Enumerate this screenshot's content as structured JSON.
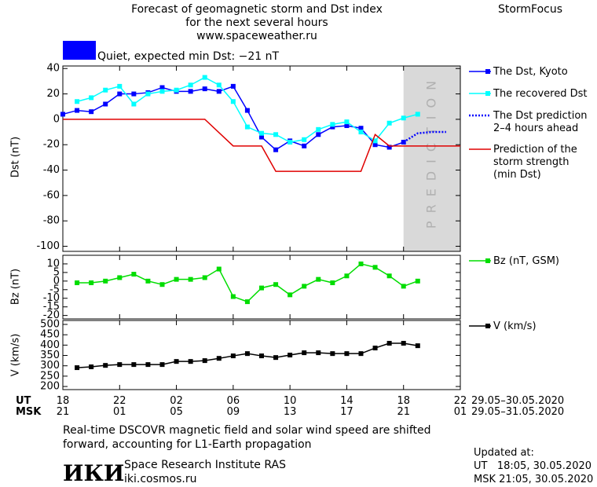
{
  "header": {
    "title_lines": [
      "Forecast of geomagnetic storm and Dst index",
      "for the next several hours",
      "www.spaceweather.ru"
    ],
    "brand": "StormFocus",
    "status": "Quiet, expected min Dst: −21 nT",
    "status_color": "#0000ff"
  },
  "x_axis": {
    "xlim": [
      0,
      28
    ],
    "xticks": [
      {
        "value": 0,
        "label": "18"
      },
      {
        "value": 4,
        "label": "22"
      },
      {
        "value": 8,
        "label": "02"
      },
      {
        "value": 12,
        "label": "06"
      },
      {
        "value": 16,
        "label": "10"
      },
      {
        "value": 20,
        "label": "14"
      },
      {
        "value": 24,
        "label": "18"
      },
      {
        "value": 28,
        "label": "22"
      }
    ],
    "msk_labels": [
      "21",
      "01",
      "05",
      "09",
      "13",
      "17",
      "21",
      "01"
    ],
    "ut_label": "UT",
    "msk_label": "MSK",
    "ut_dates": "29.05–30.05.2020",
    "msk_dates": "29.05–31.05.2020"
  },
  "chart_data": [
    {
      "type": "line",
      "ylabel": "Dst (nT)",
      "ylim": [
        -104,
        42
      ],
      "yticks": [
        40,
        20,
        0,
        -20,
        -40,
        -60,
        -80,
        -100
      ],
      "prediction_region": {
        "x": [
          24,
          28
        ],
        "label": "PREDICTION",
        "color": "#d9d9d9"
      },
      "series": [
        {
          "name": "The Dst, Kyoto",
          "color": "#0000ff",
          "marker": "square",
          "dash": false,
          "x": [
            0,
            1,
            2,
            3,
            4,
            5,
            6,
            7,
            8,
            9,
            10,
            11,
            12,
            13,
            14,
            15,
            16,
            17,
            18,
            19,
            20,
            21,
            22,
            23,
            24
          ],
          "values": [
            4,
            7,
            6,
            12,
            20,
            20,
            21,
            25,
            22,
            22,
            24,
            22,
            26,
            7,
            -14,
            -24,
            -17,
            -21,
            -12,
            -6,
            -5,
            -7,
            -20,
            -22,
            -18
          ]
        },
        {
          "name": "The recovered Dst",
          "color": "#00ffff",
          "marker": "square",
          "dash": false,
          "x": [
            1,
            2,
            3,
            4,
            5,
            6,
            7,
            8,
            9,
            10,
            11,
            12,
            13,
            14,
            15,
            16,
            17,
            18,
            19,
            20,
            21,
            22,
            23,
            24,
            25
          ],
          "values": [
            14,
            17,
            23,
            26,
            12,
            20,
            22,
            23,
            27,
            33,
            27,
            14,
            -6,
            -11,
            -12,
            -18,
            -16,
            -8,
            -4,
            -2,
            -10,
            -17,
            -3,
            1,
            4
          ]
        },
        {
          "name": "The Dst prediction\n2–4 hours ahead",
          "color": "#0000ff",
          "marker": "none",
          "dash": true,
          "x": [
            24,
            25,
            26,
            27
          ],
          "values": [
            -18,
            -11,
            -10,
            -10
          ]
        },
        {
          "name": "Prediction of the\nstorm strength\n(min Dst)",
          "color": "#e00000",
          "marker": "none",
          "dash": false,
          "x": [
            0,
            10,
            12,
            14,
            15,
            21,
            22,
            23,
            28
          ],
          "values": [
            0,
            0,
            -21,
            -21,
            -41,
            -41,
            -12,
            -21,
            -21
          ]
        }
      ]
    },
    {
      "type": "line",
      "ylabel": "Bz (nT)",
      "ylim": [
        -22,
        15
      ],
      "yticks": [
        10,
        5,
        0,
        -5,
        -10,
        -15,
        -20
      ],
      "series": [
        {
          "name": "Bz (nT, GSM)",
          "color": "#00dd00",
          "marker": "square",
          "dash": false,
          "x": [
            1,
            2,
            3,
            4,
            5,
            6,
            7,
            8,
            9,
            10,
            11,
            12,
            13,
            14,
            15,
            16,
            17,
            18,
            19,
            20,
            21,
            22,
            23,
            24,
            25
          ],
          "values": [
            -1,
            -1,
            0,
            2,
            4,
            0,
            -2,
            1,
            1,
            2,
            7,
            -9,
            -12,
            -4,
            -2,
            -8,
            -3,
            1,
            -1,
            3,
            10,
            8,
            3,
            -3,
            0
          ]
        }
      ]
    },
    {
      "type": "line",
      "ylabel": "V (km/s)",
      "ylim": [
        185,
        519
      ],
      "yticks": [
        500,
        450,
        400,
        350,
        300,
        250,
        200
      ],
      "series": [
        {
          "name": "V (km/s)",
          "color": "#000000",
          "marker": "square",
          "dash": false,
          "x": [
            1,
            2,
            3,
            4,
            5,
            6,
            7,
            8,
            9,
            10,
            11,
            12,
            13,
            14,
            15,
            16,
            17,
            18,
            19,
            20,
            21,
            22,
            23,
            24,
            25
          ],
          "values": [
            291,
            295,
            302,
            306,
            306,
            306,
            306,
            321,
            321,
            325,
            336,
            348,
            359,
            348,
            340,
            352,
            363,
            363,
            359,
            359,
            359,
            386,
            409,
            409,
            397
          ]
        }
      ]
    }
  ],
  "footer": {
    "note_lines": [
      "Real-time DSCOVR magnetic field and solar wind speed are shifted",
      "forward, accounting for L1-Earth propagation"
    ],
    "logo": "ИКИ",
    "institute": "Space Research Institute RAS",
    "site": "iki.cosmos.ru",
    "updated_label": "Updated at:",
    "updated_ut": "UT   18:05, 30.05.2020",
    "updated_msk": "MSK 21:05, 30.05.2020"
  }
}
